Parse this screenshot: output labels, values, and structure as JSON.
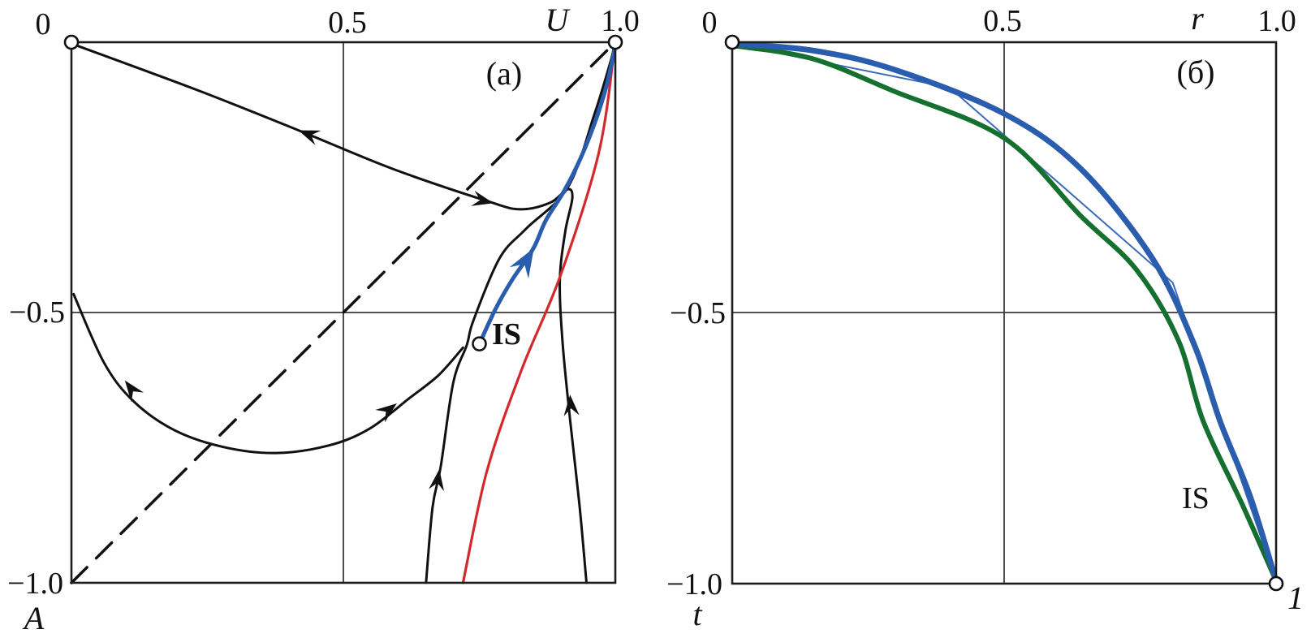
{
  "figure": {
    "background": "#ffffff"
  },
  "chart_data": [
    {
      "panel": "a",
      "type": "line",
      "title": "(a)",
      "xlabel": "U",
      "ylabel": "A",
      "xlim": [
        0,
        1
      ],
      "ylim": [
        0,
        -1
      ],
      "grid": true,
      "legend": "none",
      "x_ticks": [
        {
          "value": 0,
          "label": "0"
        },
        {
          "value": 0.5,
          "label": "0.5"
        },
        {
          "value": 1.0,
          "label": "1.0"
        }
      ],
      "y_ticks": [
        {
          "value": -0.5,
          "label": "−0.5"
        },
        {
          "value": -1.0,
          "label": "−1.0"
        }
      ],
      "annotations": [
        {
          "text": "IS",
          "x": 0.773,
          "y": -0.558,
          "bold": true,
          "refers_to": "is-separatrix"
        }
      ],
      "markers": [
        {
          "x": 0,
          "y": 0
        },
        {
          "x": 1,
          "y": 0
        },
        {
          "x": 0.75,
          "y": -0.558
        }
      ],
      "series": [
        {
          "id": "diagonal-dashed",
          "label": "diagonal A = U − 1",
          "color": "#111111",
          "width": 3.5,
          "dash": "27 16",
          "straight": true,
          "points": [
            [
              0,
              -1
            ],
            [
              1,
              0
            ]
          ]
        },
        {
          "id": "origin-trajectory",
          "label": "trajectory through origin with return branch",
          "color": "#111111",
          "width": 3,
          "points": [
            [
              0.004,
              -0.004
            ],
            [
              0.23,
              -0.088
            ],
            [
              0.42,
              -0.164
            ],
            [
              0.59,
              -0.234
            ],
            [
              0.765,
              -0.294
            ],
            [
              0.825,
              -0.309
            ],
            [
              0.88,
              -0.297
            ],
            [
              0.912,
              -0.272
            ],
            [
              0.921,
              -0.288
            ],
            [
              0.908,
              -0.35
            ],
            [
              0.898,
              -0.44
            ],
            [
              0.903,
              -0.555
            ],
            [
              0.917,
              -0.7
            ],
            [
              0.934,
              -0.855
            ],
            [
              0.947,
              -1.0
            ]
          ],
          "arrows": [
            {
              "x": 0.42,
              "y": -0.164,
              "angle": 159,
              "size": 24
            },
            {
              "x": 0.773,
              "y": -0.297,
              "angle": -13,
              "size": 24
            },
            {
              "x": 0.917,
              "y": -0.655,
              "angle": 94,
              "size": 24
            }
          ]
        },
        {
          "id": "lower-loop-trajectory",
          "label": "U-shaped trajectory",
          "color": "#111111",
          "width": 3,
          "points": [
            [
              0.004,
              -0.466
            ],
            [
              0.06,
              -0.593
            ],
            [
              0.115,
              -0.665
            ],
            [
              0.19,
              -0.718
            ],
            [
              0.28,
              -0.749
            ],
            [
              0.376,
              -0.76
            ],
            [
              0.473,
              -0.746
            ],
            [
              0.548,
              -0.715
            ],
            [
              0.622,
              -0.658
            ],
            [
              0.675,
              -0.616
            ],
            [
              0.72,
              -0.565
            ]
          ],
          "arrows": [
            {
              "x": 0.1,
              "y": -0.628,
              "angle": 127,
              "size": 24
            },
            {
              "x": 0.596,
              "y": -0.67,
              "angle": 37,
              "size": 24
            }
          ]
        },
        {
          "id": "rising-trajectory",
          "label": "trajectory rising from bottom to corner",
          "color": "#111111",
          "width": 3,
          "points": [
            [
              0.652,
              -1.0
            ],
            [
              0.664,
              -0.86
            ],
            [
              0.679,
              -0.785
            ],
            [
              0.702,
              -0.63
            ],
            [
              0.727,
              -0.56
            ],
            [
              0.739,
              -0.515
            ],
            [
              0.787,
              -0.4
            ],
            [
              0.836,
              -0.345
            ],
            [
              0.913,
              -0.268
            ],
            [
              0.962,
              -0.132
            ],
            [
              0.99,
              -0.04
            ],
            [
              0.997,
              -0.012
            ]
          ],
          "arrows": [
            {
              "x": 0.676,
              "y": -0.793,
              "angle": 82,
              "size": 24
            }
          ]
        },
        {
          "id": "red-curve",
          "label": "red isocline",
          "color": "#d3282c",
          "width": 3.2,
          "points": [
            [
              0.998,
              -0.015
            ],
            [
              0.969,
              -0.207
            ],
            [
              0.899,
              -0.432
            ],
            [
              0.828,
              -0.605
            ],
            [
              0.764,
              -0.793
            ],
            [
              0.72,
              -1.0
            ]
          ]
        },
        {
          "id": "is-separatrix",
          "label": "IS separatrix",
          "color": "#2a5dad",
          "width": 5,
          "points": [
            [
              0.75,
              -0.558
            ],
            [
              0.78,
              -0.493
            ],
            [
              0.81,
              -0.44
            ],
            [
              0.849,
              -0.382
            ],
            [
              0.872,
              -0.33
            ],
            [
              0.906,
              -0.275
            ],
            [
              0.936,
              -0.215
            ],
            [
              0.963,
              -0.147
            ],
            [
              0.984,
              -0.08
            ],
            [
              0.999,
              -0.012
            ]
          ],
          "arrows": [
            {
              "x": 0.849,
              "y": -0.383,
              "angle": 59,
              "size": 34
            }
          ]
        }
      ]
    },
    {
      "panel": "б",
      "type": "line",
      "title": "(б)",
      "xlabel": "r",
      "ylabel": "t",
      "xlim": [
        0,
        1
      ],
      "ylim": [
        0,
        -1
      ],
      "grid": true,
      "legend": "none",
      "x_ticks": [
        {
          "value": 0,
          "label": "0"
        },
        {
          "value": 0.5,
          "label": "0.5"
        },
        {
          "value": 1.0,
          "label": "1.0"
        }
      ],
      "y_ticks": [
        {
          "value": -0.5,
          "label": "−0.5"
        },
        {
          "value": -1.0,
          "label": "−1.0"
        }
      ],
      "annotations": [
        {
          "text": "IS",
          "x": 0.83,
          "y": -0.86,
          "bold": false,
          "refers_to": "is-curve"
        },
        {
          "text": "1",
          "x": 1.02,
          "y": -1.04,
          "italic": true,
          "refers_to": "end-point"
        }
      ],
      "markers": [
        {
          "x": 0,
          "y": 0
        },
        {
          "x": 1,
          "y": -1
        }
      ],
      "series": [
        {
          "id": "chord-line",
          "label": "thin polyline approximation",
          "color": "#3b6ab8",
          "width": 2,
          "straight": true,
          "points": [
            [
              0,
              -0.003
            ],
            [
              0.4,
              -0.084
            ],
            [
              0.81,
              -0.444
            ],
            [
              0.897,
              -0.696
            ],
            [
              1.0,
              -0.995
            ]
          ]
        },
        {
          "id": "is-curve",
          "label": "green IS curve",
          "color": "#15702f",
          "width": 6,
          "points": [
            [
              0,
              -0.006
            ],
            [
              0.146,
              -0.03
            ],
            [
              0.296,
              -0.09
            ],
            [
              0.5,
              -0.177
            ],
            [
              0.64,
              -0.32
            ],
            [
              0.743,
              -0.42
            ],
            [
              0.82,
              -0.55
            ],
            [
              0.866,
              -0.7
            ],
            [
              0.937,
              -0.852
            ],
            [
              1.0,
              -0.995
            ]
          ]
        },
        {
          "id": "upper-curve",
          "label": "blue curve",
          "color": "#2a5dad",
          "width": 7,
          "points": [
            [
              0,
              -0.003
            ],
            [
              0.146,
              -0.015
            ],
            [
              0.296,
              -0.05
            ],
            [
              0.5,
              -0.132
            ],
            [
              0.64,
              -0.233
            ],
            [
              0.773,
              -0.4
            ],
            [
              0.85,
              -0.56
            ],
            [
              0.897,
              -0.7
            ],
            [
              0.952,
              -0.838
            ],
            [
              1.0,
              -0.995
            ]
          ]
        }
      ]
    }
  ]
}
